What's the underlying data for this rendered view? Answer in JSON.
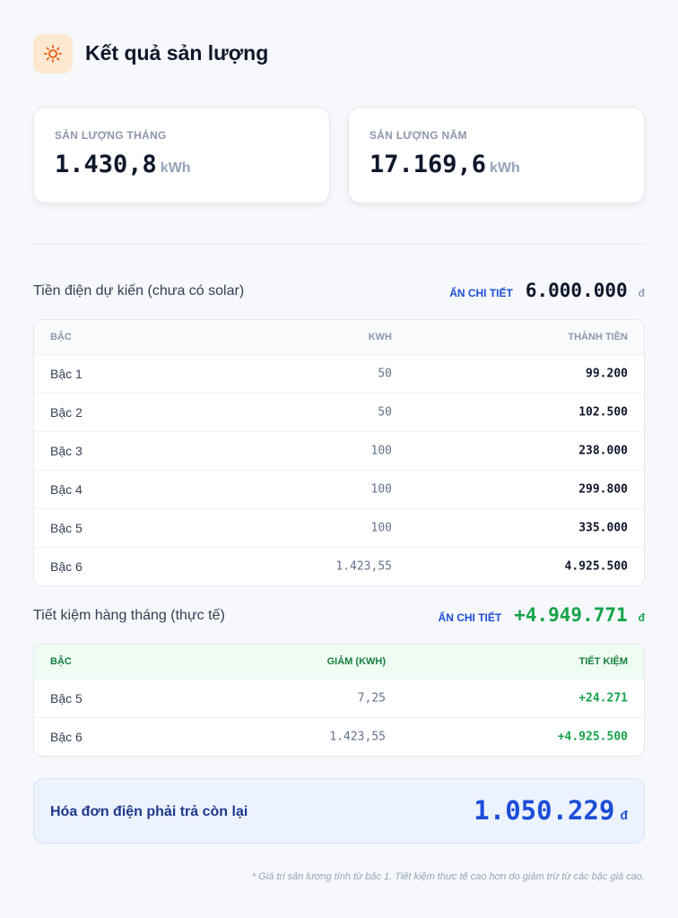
{
  "header": {
    "title": "Kết quả sản lượng"
  },
  "summary": [
    {
      "label": "SẢN LƯỢNG THÁNG",
      "value": "1.430,8",
      "unit": "kWh"
    },
    {
      "label": "SẢN LƯỢNG NĂM",
      "value": "17.169,6",
      "unit": "kWh"
    }
  ],
  "expected": {
    "title": "Tiền điện dự kiến (chưa có solar)",
    "toggle": "ẨN CHI TIẾT",
    "total": "6.000.000",
    "currency": "đ",
    "columns": [
      "BẬC",
      "KWH",
      "THÀNH TIỀN"
    ],
    "rows": [
      [
        "Bậc 1",
        "50",
        "99.200"
      ],
      [
        "Bậc 2",
        "50",
        "102.500"
      ],
      [
        "Bậc 3",
        "100",
        "238.000"
      ],
      [
        "Bậc 4",
        "100",
        "299.800"
      ],
      [
        "Bậc 5",
        "100",
        "335.000"
      ],
      [
        "Bậc 6",
        "1.423,55",
        "4.925.500"
      ]
    ]
  },
  "savings": {
    "title": "Tiết kiệm hàng tháng (thực tế)",
    "toggle": "ẨN CHI TIẾT",
    "total": "+4.949.771",
    "currency": "đ",
    "columns": [
      "BẬC",
      "GIẢM (KWH)",
      "TIẾT KIỆM"
    ],
    "rows": [
      [
        "Bậc 5",
        "7,25",
        "+24.271"
      ],
      [
        "Bậc 6",
        "1.423,55",
        "+4.925.500"
      ]
    ]
  },
  "remaining": {
    "label": "Hóa đơn điện phải trả còn lại",
    "value": "1.050.229",
    "currency": "đ"
  },
  "footnote": "* Giá trị sản lượng tính từ bậc 1. Tiết kiệm thực tế cao hơn do giảm trừ từ các bậc giá cao."
}
